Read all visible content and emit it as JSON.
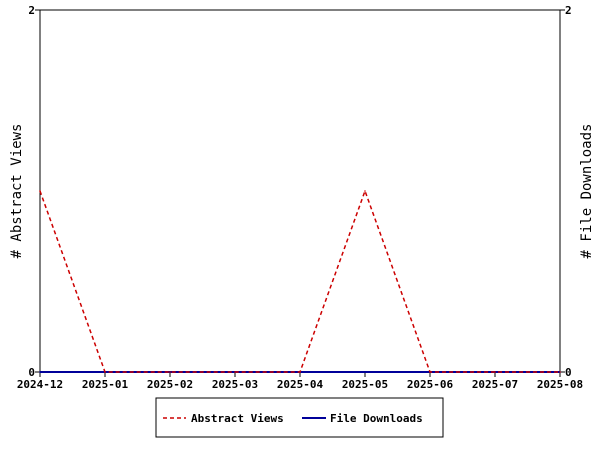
{
  "chart_data": {
    "type": "line",
    "x": [
      "2024-12",
      "2025-01",
      "2025-02",
      "2025-03",
      "2025-04",
      "2025-05",
      "2025-06",
      "2025-07",
      "2025-08"
    ],
    "series": [
      {
        "name": "Abstract Views",
        "axis": "left",
        "color": "#cc0000",
        "dash": "dashed",
        "values": [
          1,
          0,
          0,
          0,
          0,
          1,
          0,
          0,
          0
        ]
      },
      {
        "name": "File Downloads",
        "axis": "right",
        "color": "#000099",
        "dash": "solid",
        "values": [
          0,
          0,
          0,
          0,
          0,
          0,
          0,
          0,
          0
        ]
      }
    ],
    "ylabel_left": "# Abstract Views",
    "ylabel_right": "# File Downloads",
    "ylim_left": [
      0,
      2
    ],
    "ylim_right": [
      0,
      2
    ],
    "yticks_left": [
      "0",
      "2"
    ],
    "yticks_right": [
      "0",
      "2"
    ],
    "grid": false,
    "legend_position": "bottom-center"
  }
}
